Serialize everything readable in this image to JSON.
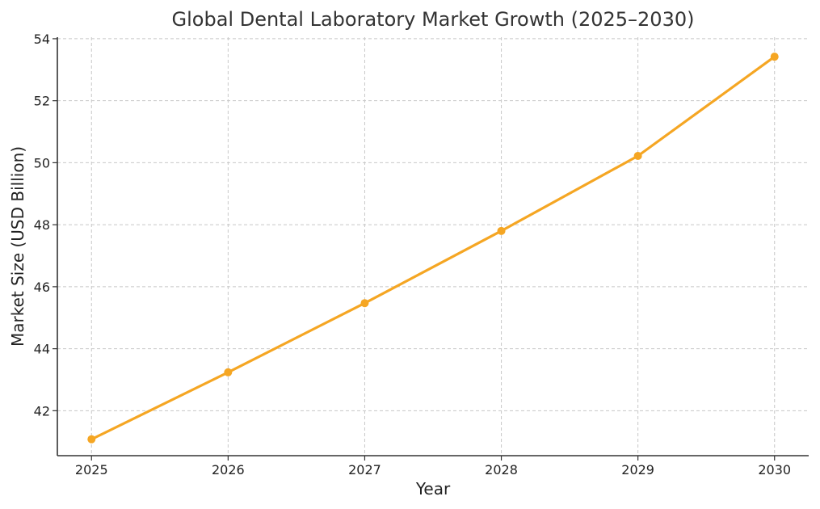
{
  "chart_data": {
    "type": "line",
    "title": "Global Dental Laboratory Market Growth (2025–2030)",
    "xlabel": "Year",
    "ylabel": "Market Size (USD Billion)",
    "x": [
      2025,
      2026,
      2027,
      2028,
      2029,
      2030
    ],
    "x_tick_labels": [
      "2025",
      "2026",
      "2027",
      "2028",
      "2029",
      "2030"
    ],
    "series": [
      {
        "values": [
          41.08,
          43.24,
          45.47,
          47.8,
          50.22,
          53.42
        ],
        "color": "#F5A623",
        "marker": "circle"
      }
    ],
    "xlim": [
      2024.75,
      2030.25
    ],
    "ylim": [
      40.55,
      54.05
    ],
    "y_ticks": [
      42,
      44,
      46,
      48,
      50,
      52,
      54
    ],
    "grid": true,
    "legend": "none"
  }
}
